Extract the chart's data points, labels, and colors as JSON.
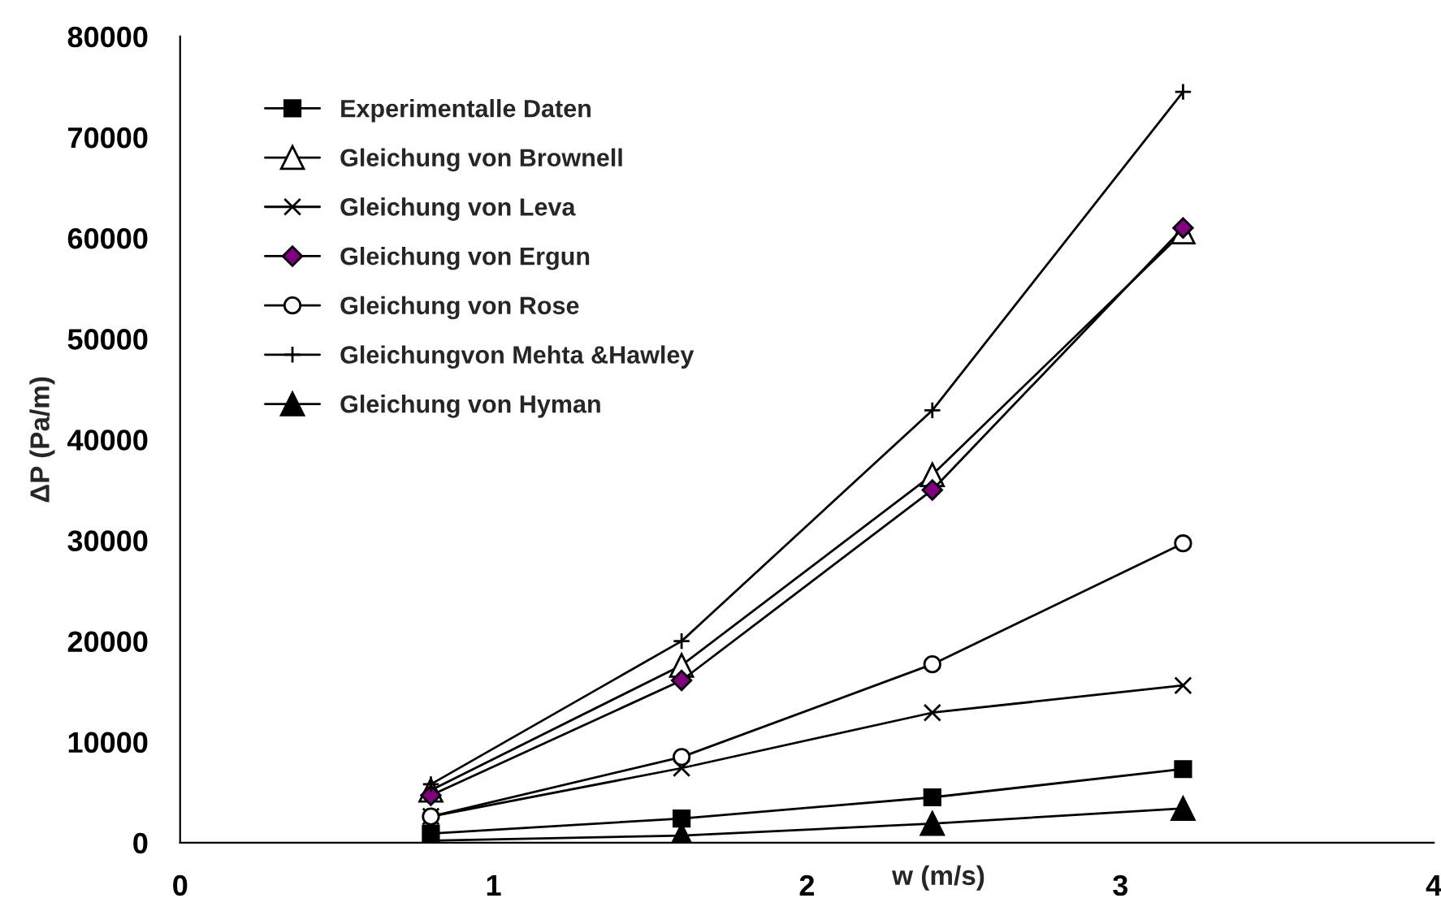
{
  "chart_data": {
    "type": "line",
    "xlabel": "w (m/s)",
    "ylabel": "ΔP (Pa/m)",
    "x": [
      0.8,
      1.6,
      2.4,
      3.2
    ],
    "xlim": [
      0,
      4
    ],
    "xticks": [
      0,
      1,
      2,
      3,
      4
    ],
    "ylim": [
      0,
      80000
    ],
    "yticks": [
      0,
      10000,
      20000,
      30000,
      40000,
      50000,
      60000,
      70000,
      80000
    ],
    "grid": false,
    "legend": "top left",
    "line_style": "solid",
    "series": [
      {
        "name": "Experimentalle Daten",
        "color": "#000000",
        "marker": "square",
        "values": [
          900,
          2400,
          4500,
          7300
        ]
      },
      {
        "name": "Gleichung von Brownell",
        "color": "#ffffff",
        "marker": "triangle",
        "values": [
          5200,
          17600,
          36500,
          60600
        ]
      },
      {
        "name": "Gleichung von Leva",
        "color": "#000000",
        "marker": "cross",
        "values": [
          2600,
          7400,
          12900,
          15600
        ]
      },
      {
        "name": "Gleichung von Ergun",
        "color": "#800080",
        "marker": "diamond",
        "values": [
          4700,
          16100,
          35000,
          61000
        ]
      },
      {
        "name": "Gleichung von Rose",
        "color": "#ffffff",
        "marker": "circle",
        "values": [
          2600,
          8500,
          17700,
          29700
        ]
      },
      {
        "name": "Gleichungvon Mehta &Hawley",
        "color": "#000000",
        "marker": "plus",
        "values": [
          5800,
          20000,
          42900,
          74500
        ]
      },
      {
        "name": "Gleichung von Hyman",
        "color": "#000000",
        "marker": "triangle",
        "values": [
          200,
          700,
          1900,
          3400
        ]
      }
    ]
  }
}
